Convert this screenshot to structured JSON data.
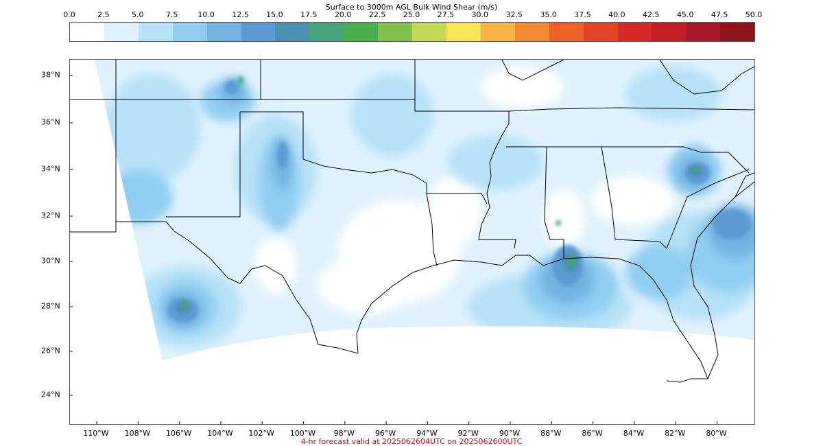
{
  "colorbar": {
    "title": "Surface to 3000m AGL Bulk Wind Shear (m/s)",
    "ticks": [
      "0.0",
      "2.5",
      "5.0",
      "7.5",
      "10.0",
      "12.5",
      "15.0",
      "17.5",
      "20.0",
      "22.5",
      "25.0",
      "27.5",
      "30.0",
      "32.5",
      "35.0",
      "37.5",
      "40.0",
      "42.5",
      "45.0",
      "47.5",
      "50.0"
    ],
    "colors": [
      "#ffffff",
      "#dff1fc",
      "#b6e1f7",
      "#90cdf1",
      "#72b2e2",
      "#5c9ad6",
      "#4a92b0",
      "#47a37a",
      "#49b04c",
      "#80c04a",
      "#c3d955",
      "#f9e457",
      "#f8b545",
      "#f58a33",
      "#f06129",
      "#e24426",
      "#d52a27",
      "#c11e25",
      "#a8182a",
      "#8e1519"
    ]
  },
  "map": {
    "lat_labels": [
      "38°N",
      "36°N",
      "34°N",
      "32°N",
      "30°N",
      "28°N",
      "26°N",
      "24°N"
    ],
    "lon_labels": [
      "110°W",
      "108°W",
      "106°W",
      "104°W",
      "102°W",
      "100°W",
      "98°W",
      "96°W",
      "94°W",
      "92°W",
      "90°W",
      "88°W",
      "86°W",
      "84°W",
      "82°W",
      "80°W"
    ]
  },
  "footer": "4-hr forecast valid at 2025062604UTC on 2025062600UTC"
}
